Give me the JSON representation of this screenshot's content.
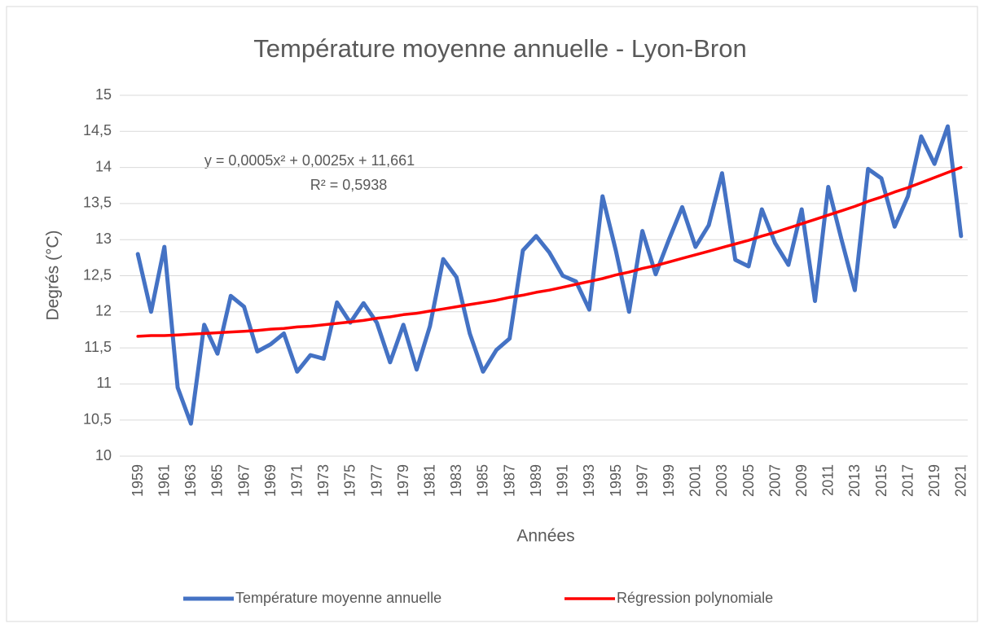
{
  "chart_data": {
    "type": "line",
    "title": "Température moyenne annuelle - Lyon-Bron",
    "y_label": "Degrés (°C)",
    "x_label": "Années",
    "annotations": [
      "y = 0,0005x² + 0,0025x + 11,661",
      "R² = 0,5938"
    ],
    "categories": [
      "1959",
      null,
      "1961",
      null,
      "1963",
      null,
      "1965",
      null,
      "1967",
      null,
      "1969",
      null,
      "1971",
      null,
      "1973",
      null,
      "1975",
      null,
      "1977",
      null,
      "1979",
      null,
      "1981",
      null,
      "1983",
      null,
      "1985",
      null,
      "1987",
      null,
      "1989",
      null,
      "1991",
      null,
      "1993",
      null,
      "1995",
      null,
      "1997",
      null,
      "1999",
      null,
      "2001",
      null,
      "2003",
      null,
      "2005",
      null,
      "2007",
      null,
      "2009",
      null,
      "2011",
      null,
      "2013",
      null,
      "2015",
      null,
      "2017",
      null,
      "2019",
      null,
      "2021"
    ],
    "series": [
      {
        "name": "Température moyenne annuelle",
        "color": "#4472c4",
        "values": [
          12.8,
          12.0,
          12.9,
          10.95,
          10.45,
          11.82,
          11.42,
          12.22,
          12.07,
          11.45,
          11.55,
          11.7,
          11.17,
          11.4,
          11.35,
          12.13,
          11.85,
          12.12,
          11.85,
          11.3,
          11.82,
          11.2,
          11.8,
          12.73,
          12.48,
          11.7,
          11.17,
          11.47,
          11.63,
          12.85,
          13.05,
          12.82,
          12.5,
          12.42,
          12.03,
          13.6,
          12.85,
          12.0,
          13.12,
          12.52,
          13.0,
          13.45,
          12.9,
          13.2,
          13.92,
          12.72,
          12.63,
          13.42,
          12.95,
          12.65,
          13.42,
          12.15,
          13.73,
          13.0,
          12.3,
          13.98,
          13.85,
          13.18,
          13.6,
          14.43,
          14.05,
          14.57,
          13.05
        ]
      },
      {
        "name": "Régression polynomiale",
        "color": "#ff0000",
        "values": [
          11.66,
          11.67,
          11.67,
          11.68,
          11.69,
          11.7,
          11.71,
          11.72,
          11.73,
          11.74,
          11.76,
          11.77,
          11.79,
          11.8,
          11.82,
          11.84,
          11.86,
          11.88,
          11.91,
          11.93,
          11.96,
          11.98,
          12.01,
          12.04,
          12.07,
          12.1,
          12.13,
          12.16,
          12.2,
          12.23,
          12.27,
          12.3,
          12.34,
          12.38,
          12.42,
          12.46,
          12.51,
          12.55,
          12.6,
          12.64,
          12.69,
          12.74,
          12.79,
          12.84,
          12.89,
          12.94,
          12.99,
          13.05,
          13.1,
          13.16,
          13.22,
          13.28,
          13.34,
          13.4,
          13.46,
          13.53,
          13.59,
          13.66,
          13.72,
          13.79,
          13.86,
          13.93,
          14.0
        ]
      }
    ],
    "ylim": [
      10,
      15
    ],
    "yticks": [
      10,
      {
        "value": 10.5,
        "label": "10,5"
      },
      11,
      {
        "value": 11.5,
        "label": "11,5"
      },
      12,
      {
        "value": 12.5,
        "label": "12,5"
      },
      13,
      {
        "value": 13.5,
        "label": "13,5"
      },
      14,
      {
        "value": 14.5,
        "label": "14,5"
      },
      15
    ],
    "grid": true,
    "legend": "bottom"
  }
}
